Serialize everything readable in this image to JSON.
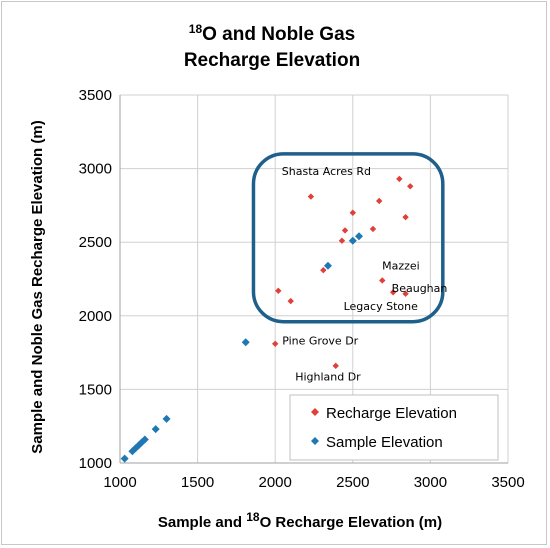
{
  "chart_data": {
    "type": "scatter",
    "title_line1_sup": "18",
    "title_line1_rest": "O and Noble Gas",
    "title_line2": "Recharge Elevation",
    "xlabel_pre": "Sample and ",
    "xlabel_sup": "18",
    "xlabel_post": "O Recharge Elevation (m)",
    "ylabel": "Sample and Noble Gas Recharge Elevation (m)",
    "xlim": [
      1000,
      3500
    ],
    "ylim": [
      1000,
      3500
    ],
    "x_ticks": [
      "1000",
      "1500",
      "2000",
      "2500",
      "3000",
      "3500"
    ],
    "y_ticks": [
      "1000",
      "1500",
      "2000",
      "2500",
      "3000",
      "3500"
    ],
    "grid": true,
    "legend_position": "bottom-right",
    "series": [
      {
        "name": "Recharge Elevation",
        "color": "#e0403a",
        "marker": "diamond",
        "points": [
          {
            "x": 2230,
            "y": 2810
          },
          {
            "x": 2800,
            "y": 2930
          },
          {
            "x": 2870,
            "y": 2880
          },
          {
            "x": 2500,
            "y": 2700
          },
          {
            "x": 2670,
            "y": 2780
          },
          {
            "x": 2840,
            "y": 2670
          },
          {
            "x": 2450,
            "y": 2580
          },
          {
            "x": 2430,
            "y": 2510
          },
          {
            "x": 2630,
            "y": 2590
          },
          {
            "x": 2310,
            "y": 2310
          },
          {
            "x": 2690,
            "y": 2240
          },
          {
            "x": 2760,
            "y": 2160
          },
          {
            "x": 2840,
            "y": 2150
          },
          {
            "x": 2020,
            "y": 2170
          },
          {
            "x": 2100,
            "y": 2100
          },
          {
            "x": 2000,
            "y": 1810
          },
          {
            "x": 2390,
            "y": 1660
          }
        ]
      },
      {
        "name": "Sample Elevation",
        "color": "#1f77b4",
        "marker": "diamond",
        "points": [
          {
            "x": 2340,
            "y": 2340
          },
          {
            "x": 2500,
            "y": 2510
          },
          {
            "x": 2540,
            "y": 2540
          },
          {
            "x": 1810,
            "y": 1820
          },
          {
            "x": 1300,
            "y": 1300
          },
          {
            "x": 1230,
            "y": 1230
          },
          {
            "x": 1160,
            "y": 1160
          },
          {
            "x": 1140,
            "y": 1140
          },
          {
            "x": 1120,
            "y": 1120
          },
          {
            "x": 1100,
            "y": 1100
          },
          {
            "x": 1080,
            "y": 1080
          },
          {
            "x": 1030,
            "y": 1030
          }
        ]
      }
    ],
    "annotations": [
      {
        "text": "Shasta Acres Rd",
        "x": 2330,
        "y": 2955
      },
      {
        "text": "Mazzei",
        "x": 2810,
        "y": 2315
      },
      {
        "text": "Beaughan",
        "x": 2930,
        "y": 2160
      },
      {
        "text": "Legacy Stone",
        "x": 2680,
        "y": 2040
      },
      {
        "text": "Pine Grove Dr",
        "x": 2290,
        "y": 1805
      },
      {
        "text": "Highland Dr",
        "x": 2340,
        "y": 1560
      }
    ],
    "highlight_box": {
      "x0": 1860,
      "x1": 3080,
      "y0": 1960,
      "y1": 3100,
      "color": "#1f5f8b"
    }
  }
}
